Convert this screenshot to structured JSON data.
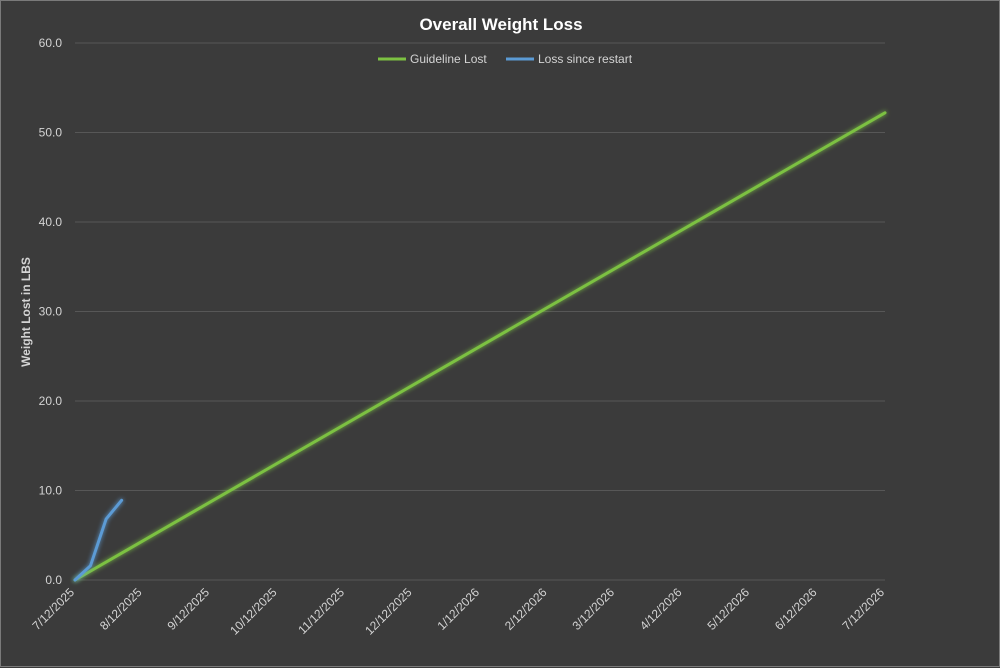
{
  "chart_data": {
    "type": "line",
    "title": "Overall Weight Loss",
    "xlabel": "",
    "ylabel": "Weight Lost in LBS",
    "ylim": [
      0,
      60
    ],
    "yticks": [
      "0.0",
      "10.0",
      "20.0",
      "30.0",
      "40.0",
      "50.0",
      "60.0"
    ],
    "xlim": [
      "2025-07-12",
      "2026-07-12"
    ],
    "xticks": [
      "7/12/2025",
      "8/12/2025",
      "9/12/2025",
      "10/12/2025",
      "11/12/2025",
      "12/12/2025",
      "1/12/2026",
      "2/12/2026",
      "3/12/2026",
      "4/12/2026",
      "5/12/2026",
      "6/12/2026",
      "7/12/2026"
    ],
    "grid": true,
    "legend_position": "top",
    "series": [
      {
        "name": "Guideline Lost",
        "color": "#7cc142",
        "points": [
          {
            "x": "2025-07-12",
            "y": 0
          },
          {
            "x": "2026-07-12",
            "y": 52.2
          }
        ]
      },
      {
        "name": "Loss since restart",
        "color": "#5b9bd5",
        "points": [
          {
            "x": "2025-07-12",
            "y": 0
          },
          {
            "x": "2025-07-19",
            "y": 1.6
          },
          {
            "x": "2025-07-26",
            "y": 6.8
          },
          {
            "x": "2025-08-02",
            "y": 8.9
          }
        ]
      }
    ]
  }
}
